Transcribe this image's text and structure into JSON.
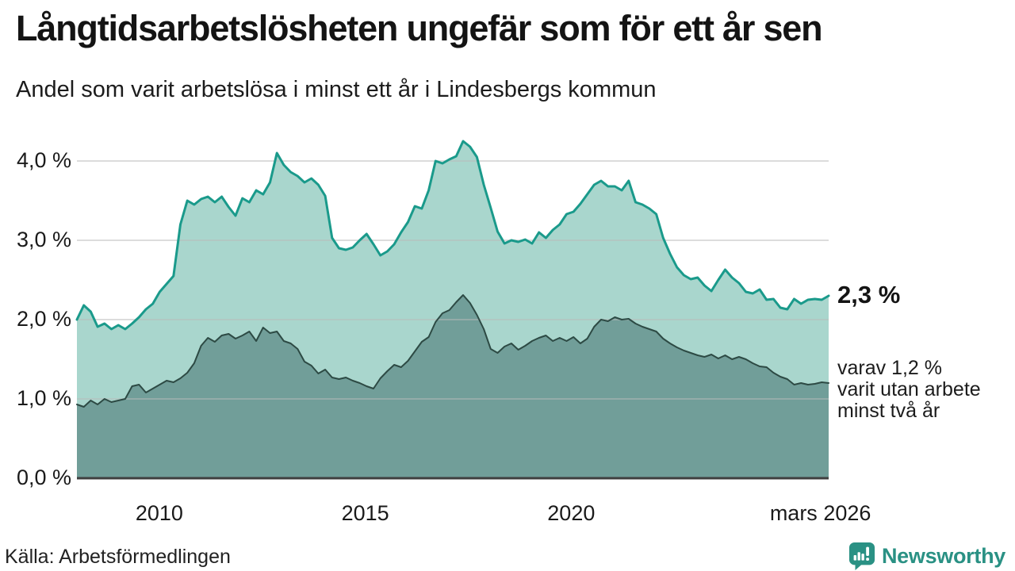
{
  "header": {
    "title": "Långtidsarbetslösheten ungefär som för ett år sen",
    "subtitle": "Andel som varit arbetslösa i minst ett år i Lindesbergs kommun"
  },
  "annotations": {
    "latest_total": "2,3 %",
    "note_lines": [
      "varav 1,2 %",
      "varit utan arbete",
      "minst två år"
    ]
  },
  "footer": {
    "source": "Källa: Arbetsförmedlingen",
    "brand": "Newsworthy"
  },
  "colors": {
    "accent_teal": "#1a9a8b",
    "light_fill": "#a9d6cd",
    "dark_line": "#2d4a44",
    "dark_fill": "#719e99",
    "gridline": "rgba(185,185,185,0.5)",
    "axis_line": "#3f3f3f",
    "brand_teal": "#2a9184"
  },
  "chart_data": {
    "type": "area",
    "title": "Långtidsarbetslösheten ungefär som för ett år sen",
    "subtitle": "Andel som varit arbetslösa i minst ett år i Lindesbergs kommun",
    "xlabel": "",
    "ylabel": "",
    "unit": "%",
    "grid": true,
    "legend_position": "direct-labels-right",
    "x_start": 2008.0,
    "x_end": 2026.25,
    "ylim": [
      0,
      4.35
    ],
    "y_ticks": [
      {
        "v": 0.0,
        "label": "0,0 %"
      },
      {
        "v": 1.0,
        "label": "1,0 %"
      },
      {
        "v": 2.0,
        "label": "2,0 %"
      },
      {
        "v": 3.0,
        "label": "3,0 %"
      },
      {
        "v": 4.0,
        "label": "4,0 %"
      }
    ],
    "x_ticks": [
      {
        "t": 2010.0,
        "label": "2010"
      },
      {
        "t": 2015.0,
        "label": "2015"
      },
      {
        "t": 2020.0,
        "label": "2020"
      },
      {
        "t": 2026.05,
        "label": "mars 2026"
      }
    ],
    "series": [
      {
        "name": "Andel arbetslösa minst ett år",
        "latest_value": 2.3,
        "line_color": "#1a9a8b",
        "fill_color": "#a9d6cd",
        "line_width": 3,
        "values": [
          2.0,
          2.18,
          2.1,
          1.91,
          1.95,
          1.88,
          1.93,
          1.88,
          1.95,
          2.03,
          2.13,
          2.2,
          2.35,
          2.45,
          2.55,
          3.2,
          3.5,
          3.45,
          3.52,
          3.55,
          3.48,
          3.55,
          3.42,
          3.31,
          3.53,
          3.48,
          3.63,
          3.58,
          3.73,
          4.1,
          3.95,
          3.86,
          3.81,
          3.73,
          3.78,
          3.7,
          3.56,
          3.03,
          2.9,
          2.88,
          2.91,
          3.0,
          3.08,
          2.95,
          2.81,
          2.86,
          2.95,
          3.1,
          3.23,
          3.43,
          3.4,
          3.63,
          4.0,
          3.97,
          4.02,
          4.06,
          4.25,
          4.18,
          4.05,
          3.7,
          3.41,
          3.11,
          2.96,
          3.0,
          2.98,
          3.01,
          2.96,
          3.1,
          3.03,
          3.13,
          3.2,
          3.33,
          3.36,
          3.46,
          3.58,
          3.7,
          3.75,
          3.68,
          3.68,
          3.63,
          3.75,
          3.48,
          3.45,
          3.4,
          3.33,
          3.03,
          2.83,
          2.66,
          2.56,
          2.51,
          2.53,
          2.43,
          2.36,
          2.5,
          2.63,
          2.53,
          2.46,
          2.35,
          2.33,
          2.38,
          2.25,
          2.26,
          2.15,
          2.13,
          2.26,
          2.2,
          2.25,
          2.26,
          2.25,
          2.3
        ]
      },
      {
        "name": "Andel arbetslösa minst två år",
        "latest_value": 1.2,
        "line_color": "#2d4a44",
        "fill_color": "#719e99",
        "line_width": 2,
        "values": [
          0.93,
          0.9,
          0.98,
          0.93,
          1.0,
          0.96,
          0.98,
          1.0,
          1.16,
          1.18,
          1.08,
          1.13,
          1.18,
          1.23,
          1.21,
          1.26,
          1.33,
          1.45,
          1.67,
          1.77,
          1.72,
          1.8,
          1.82,
          1.76,
          1.8,
          1.85,
          1.73,
          1.9,
          1.83,
          1.85,
          1.73,
          1.7,
          1.63,
          1.47,
          1.42,
          1.32,
          1.37,
          1.27,
          1.25,
          1.27,
          1.23,
          1.2,
          1.16,
          1.13,
          1.26,
          1.35,
          1.43,
          1.4,
          1.48,
          1.6,
          1.72,
          1.78,
          1.97,
          2.08,
          2.12,
          2.22,
          2.31,
          2.21,
          2.06,
          1.88,
          1.63,
          1.58,
          1.66,
          1.7,
          1.62,
          1.67,
          1.73,
          1.77,
          1.8,
          1.73,
          1.77,
          1.73,
          1.78,
          1.7,
          1.76,
          1.91,
          2.0,
          1.98,
          2.03,
          2.0,
          2.01,
          1.95,
          1.91,
          1.88,
          1.85,
          1.76,
          1.7,
          1.65,
          1.61,
          1.58,
          1.55,
          1.53,
          1.56,
          1.51,
          1.55,
          1.5,
          1.53,
          1.5,
          1.45,
          1.41,
          1.4,
          1.33,
          1.28,
          1.25,
          1.18,
          1.2,
          1.18,
          1.19,
          1.21,
          1.2
        ]
      }
    ]
  }
}
